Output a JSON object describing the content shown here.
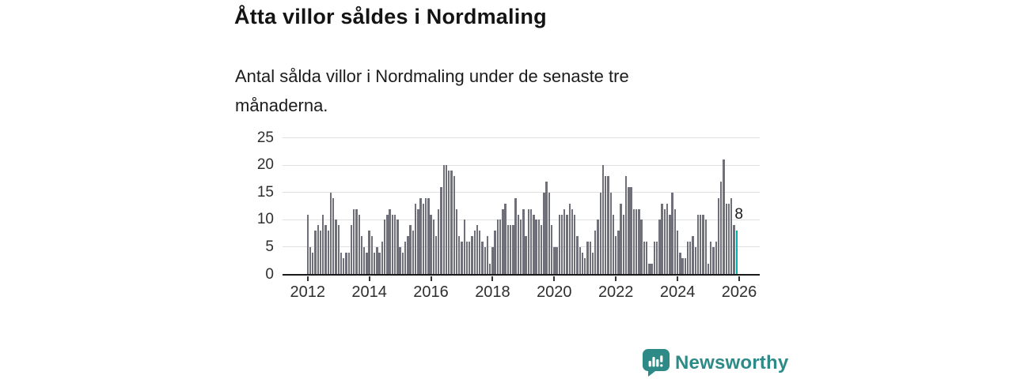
{
  "header": {
    "title": "Åtta villor såldes i Nordmaling",
    "subtitle": "Antal sålda villor i Nordmaling under de senaste tre månaderna."
  },
  "chart_data": {
    "type": "bar",
    "title": "Åtta villor såldes i Nordmaling",
    "x_start": "2012-01",
    "x_frequency": "monthly",
    "values": [
      11,
      5,
      4,
      8,
      9,
      8,
      11,
      9,
      8,
      15,
      14,
      10,
      9,
      4,
      3,
      4,
      4,
      9,
      12,
      12,
      11,
      7,
      5,
      4,
      8,
      7,
      4,
      5,
      4,
      6,
      10,
      11,
      12,
      11,
      11,
      10,
      5,
      4,
      6,
      7,
      9,
      8,
      13,
      12,
      14,
      13,
      14,
      14,
      11,
      10,
      7,
      12,
      16,
      20,
      20,
      19,
      19,
      18,
      12,
      7,
      6,
      10,
      6,
      6,
      7,
      8,
      9,
      8,
      6,
      5,
      7,
      2,
      5,
      8,
      10,
      10,
      12,
      13,
      9,
      9,
      9,
      14,
      11,
      10,
      12,
      7,
      12,
      12,
      11,
      10,
      10,
      9,
      15,
      17,
      15,
      9,
      5,
      5,
      11,
      11,
      12,
      11,
      13,
      12,
      11,
      7,
      5,
      4,
      3,
      6,
      6,
      4,
      8,
      10,
      15,
      20,
      18,
      18,
      15,
      11,
      7,
      8,
      13,
      11,
      18,
      16,
      16,
      12,
      12,
      12,
      10,
      6,
      6,
      2,
      2,
      6,
      6,
      10,
      13,
      12,
      13,
      11,
      15,
      12,
      8,
      4,
      3,
      3,
      6,
      6,
      7,
      5,
      11,
      11,
      11,
      10,
      2,
      6,
      5,
      6,
      14,
      17,
      21,
      13,
      13,
      14,
      9,
      8
    ],
    "highlight": {
      "position": "last",
      "value": 8,
      "label": "8",
      "color": "#00b2a9"
    },
    "bar_color": "#70707a",
    "ylim": [
      0,
      25
    ],
    "yticks": [
      0,
      5,
      10,
      15,
      20,
      25
    ],
    "xticks": [
      2012,
      2014,
      2016,
      2018,
      2020,
      2022,
      2024,
      2026
    ],
    "grid": true,
    "legend": "none",
    "gridline_color": "#e0e0e0",
    "baseline_color": "#1a1a1a",
    "tick_label_color": "#2f2f2f"
  },
  "footer": {
    "brand": "Newsworthy",
    "brand_color": "#2e8a87"
  }
}
